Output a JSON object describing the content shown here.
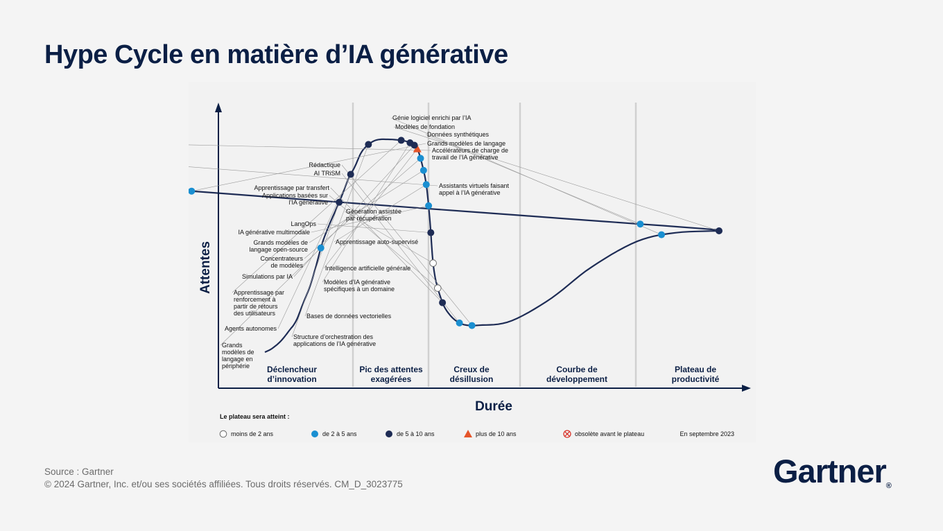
{
  "title": "Hype Cycle en matière d’IA générative",
  "axis": {
    "y_label": "Attentes",
    "x_label": "Durée"
  },
  "phases": [
    [
      "Déclencheur",
      "d’innovation"
    ],
    [
      "Pic des attentes",
      "exagérées"
    ],
    [
      "Creux de",
      "désillusion"
    ],
    [
      "Courbe de",
      "développement"
    ],
    [
      "Plateau de",
      "productivité"
    ]
  ],
  "technologies": [
    {
      "t": 0.96,
      "lines": [
        "Génie logiciel enrichi par l’IA"
      ],
      "status": "2-5"
    },
    {
      "t": 1.0,
      "lines": [
        "Modèles de fondation"
      ],
      "status": "5-10"
    },
    {
      "t": 1.035,
      "lines": [
        "Données synthétiques"
      ],
      "status": "2-5"
    },
    {
      "t": 1.07,
      "lines": [
        "Grands modèles de langage"
      ],
      "status": "2-5"
    },
    {
      "t": 1.1,
      "lines": [
        "Accélérateurs de charge de",
        "travail de l’IA générative"
      ],
      "status": "lt2"
    },
    {
      "t": 1.175,
      "lines": [
        "Assistants virtuels faisant",
        "appel à l’IA générative"
      ],
      "status": "lt2"
    },
    {
      "t": 0.805,
      "lines": [
        "Rédactique"
      ],
      "status": "2-5"
    },
    {
      "t": 0.785,
      "lines": [
        "AI TRiSM"
      ],
      "status": "2-5"
    },
    {
      "t": 0.745,
      "lines": [
        "Apprentissage par transfert"
      ],
      "status": "5-10"
    },
    {
      "t": 0.725,
      "lines": [
        "Applications basées sur",
        "l’IA générative"
      ],
      "status": "lt2"
    },
    {
      "t": 0.695,
      "lines": [
        "Génération assistée",
        "par récupération"
      ],
      "status": "lt2"
    },
    {
      "t": 0.675,
      "lines": [
        "LangOps"
      ],
      "status": "5-10"
    },
    {
      "t": 0.655,
      "lines": [
        "IA générative multimodale"
      ],
      "status": "2-5"
    },
    {
      "t": 0.635,
      "lines": [
        "Apprentissage auto-supervisé"
      ],
      "status": "2-5"
    },
    {
      "t": 0.615,
      "lines": [
        "Grands modèles de",
        "langage open-source"
      ],
      "status": "2-5"
    },
    {
      "t": 0.595,
      "lines": [
        "Concentrateurs",
        "de modèles"
      ],
      "status": "2-5"
    },
    {
      "t": 0.575,
      "lines": [
        "Intelligence artificielle générale"
      ],
      "status": "gt10"
    },
    {
      "t": 0.555,
      "lines": [
        "Simulations par IA"
      ],
      "status": "5-10"
    },
    {
      "t": 0.535,
      "lines": [
        "Modèles d’IA générative",
        "spécifiques à un domaine"
      ],
      "status": "5-10"
    },
    {
      "t": 0.51,
      "lines": [
        "Apprentissage par",
        "renforcement à",
        "partir de retours",
        "des utilisateurs"
      ],
      "status": "5-10"
    },
    {
      "t": 0.44,
      "lines": [
        "Bases de données vectorielles"
      ],
      "status": "5-10"
    },
    {
      "t": 0.375,
      "lines": [
        "Agents autonomes"
      ],
      "status": "5-10"
    },
    {
      "t": 0.325,
      "lines": [
        "Structure d’orchestration des",
        "applications de l’IA générative"
      ],
      "status": "5-10"
    },
    {
      "t": 0.235,
      "lines": [
        "Grands",
        "modèles de",
        "langage en",
        "périphérie"
      ],
      "status": "2-5"
    }
  ],
  "legend": {
    "heading": "Le plateau sera atteint :",
    "items": [
      {
        "status": "lt2",
        "label": "moins de 2 ans"
      },
      {
        "status": "2-5",
        "label": "de 2 à 5 ans"
      },
      {
        "status": "5-10",
        "label": "de 5 à 10 ans"
      },
      {
        "status": "gt10",
        "label": "plus de 10 ans"
      },
      {
        "status": "obsolete",
        "label": "obsolète avant le plateau"
      }
    ],
    "date": "En septembre 2023"
  },
  "colors": {
    "navy": "#0b1f45",
    "blue": "#1a8fd1",
    "dark": "#1e2c55",
    "orange": "#e5552a",
    "red": "#d9342b",
    "grid": "#d0d0d0"
  },
  "footer": {
    "source": "Source : Gartner",
    "copyright": "© 2024 Gartner, Inc. et/ou ses sociétés affiliées. Tous droits réservés. CM_D_3023775"
  },
  "logo": {
    "text": "Gartner",
    "mark": "®"
  }
}
